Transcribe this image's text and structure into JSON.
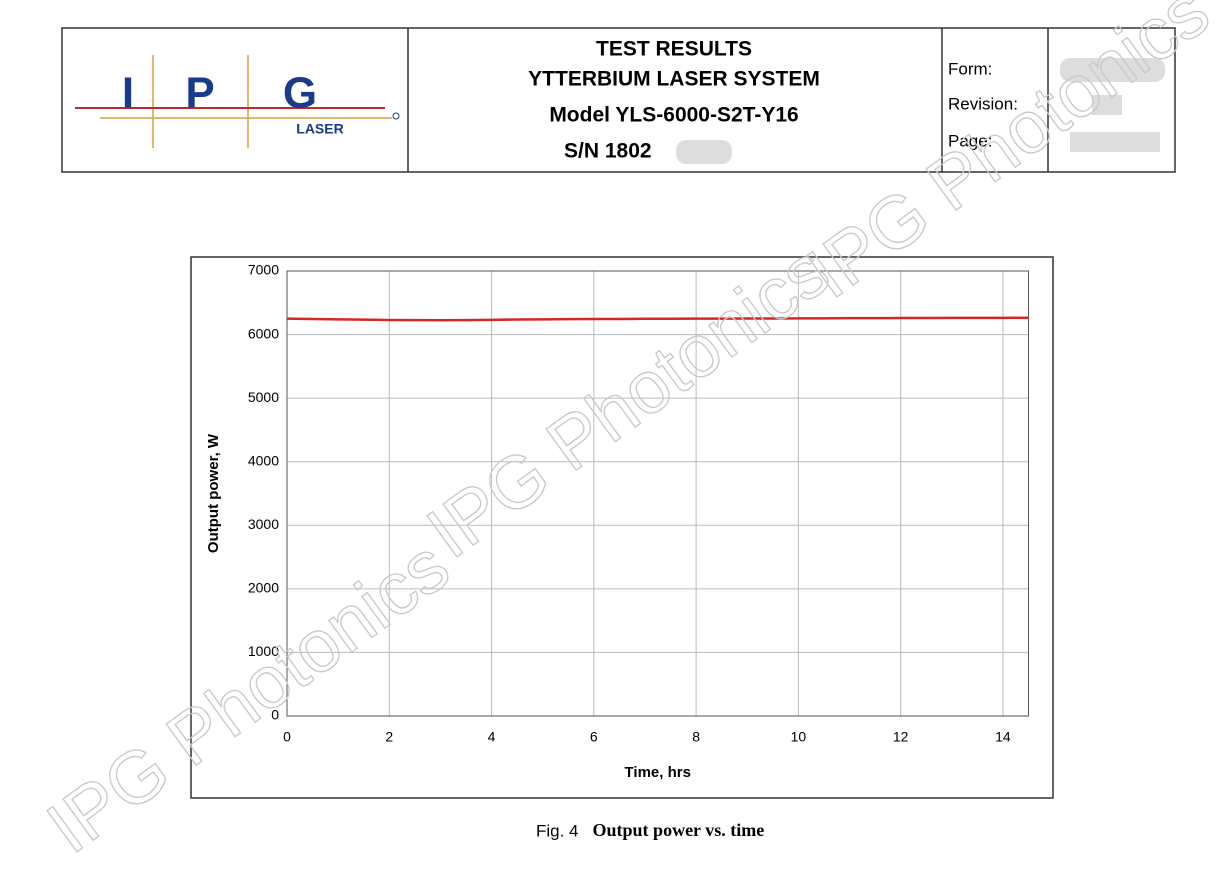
{
  "header": {
    "logo": {
      "letters": [
        "I",
        "P",
        "G"
      ],
      "text": "LASER"
    },
    "title_lines": [
      "TEST RESULTS",
      "YTTERBIUM LASER SYSTEM",
      "Model YLS-6000-S2T-Y16",
      "S/N 1802"
    ],
    "fields": [
      "Form:",
      "Revision:",
      "Page:"
    ]
  },
  "watermarks": [
    "IPG Photonics",
    "IPG Photonics",
    "IPG Photonics"
  ],
  "chart_data": {
    "type": "line",
    "xlabel": "Time, hrs",
    "ylabel": "Output power, W",
    "x": [
      0,
      0.5,
      1,
      1.5,
      2,
      2.5,
      3,
      3.5,
      4,
      4.5,
      5,
      5.5,
      6,
      6.5,
      7,
      7.5,
      8,
      8.5,
      9,
      9.5,
      10,
      10.5,
      11,
      11.5,
      12,
      12.5,
      13,
      13.5,
      14,
      14.5
    ],
    "series": [
      {
        "color": "#d62728",
        "values": [
          6250,
          6245,
          6240,
          6235,
          6230,
          6228,
          6225,
          6228,
          6232,
          6238,
          6240,
          6242,
          6245,
          6245,
          6248,
          6248,
          6250,
          6250,
          6252,
          6252,
          6255,
          6255,
          6258,
          6258,
          6260,
          6260,
          6262,
          6262,
          6262,
          6265
        ]
      }
    ],
    "xlim": [
      0,
      14.5
    ],
    "ylim": [
      0,
      7000
    ],
    "xticks": [
      0,
      2,
      4,
      6,
      8,
      10,
      12,
      14
    ],
    "yticks": [
      0,
      1000,
      2000,
      3000,
      4000,
      5000,
      6000,
      7000
    ],
    "grid": true
  },
  "caption": {
    "label": "Fig. 4",
    "text": "Output power vs. time"
  }
}
